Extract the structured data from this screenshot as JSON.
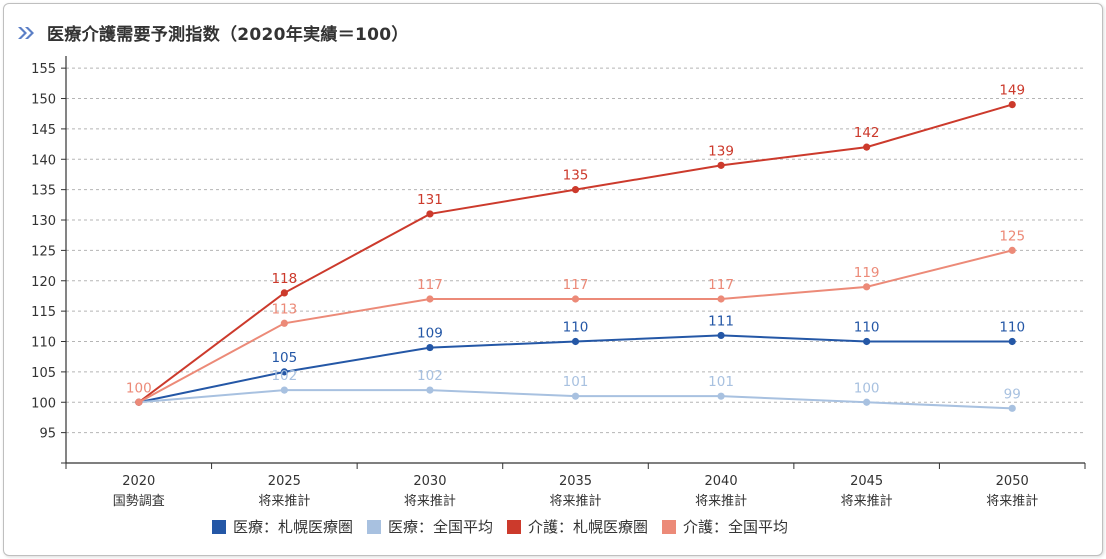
{
  "title": "医療介護需要予測指数（2020年実績＝100）",
  "chart_data": {
    "type": "line",
    "categories": [
      {
        "year": "2020",
        "sub": "国勢調査"
      },
      {
        "year": "2025",
        "sub": "将来推計"
      },
      {
        "year": "2030",
        "sub": "将来推計"
      },
      {
        "year": "2035",
        "sub": "将来推計"
      },
      {
        "year": "2040",
        "sub": "将来推計"
      },
      {
        "year": "2045",
        "sub": "将来推計"
      },
      {
        "year": "2050",
        "sub": "将来推計"
      }
    ],
    "ylim": [
      90,
      157
    ],
    "yticks": [
      95,
      100,
      105,
      110,
      115,
      120,
      125,
      130,
      135,
      140,
      145,
      150,
      155
    ],
    "grid": true,
    "legend_position": "bottom",
    "series": [
      {
        "name": "医療：札幌医療圏",
        "color": "#2457a6",
        "values": [
          100,
          105,
          109,
          110,
          111,
          110,
          110
        ],
        "labels": [
          "",
          "105",
          "109",
          "110",
          "111",
          "110",
          "110"
        ]
      },
      {
        "name": "医療：全国平均",
        "color": "#a8c1e0",
        "values": [
          100,
          102,
          102,
          101,
          101,
          100,
          99
        ],
        "labels": [
          "",
          "102",
          "102",
          "101",
          "101",
          "100",
          "99"
        ]
      },
      {
        "name": "介護：札幌医療圏",
        "color": "#cc3a2c",
        "values": [
          100,
          118,
          131,
          135,
          139,
          142,
          149
        ],
        "labels": [
          "",
          "118",
          "131",
          "135",
          "139",
          "142",
          "149"
        ]
      },
      {
        "name": "介護：全国平均",
        "color": "#ec8a78",
        "values": [
          100,
          113,
          117,
          117,
          117,
          119,
          125
        ],
        "labels": [
          "100",
          "113",
          "117",
          "117",
          "117",
          "119",
          "125"
        ]
      }
    ]
  }
}
